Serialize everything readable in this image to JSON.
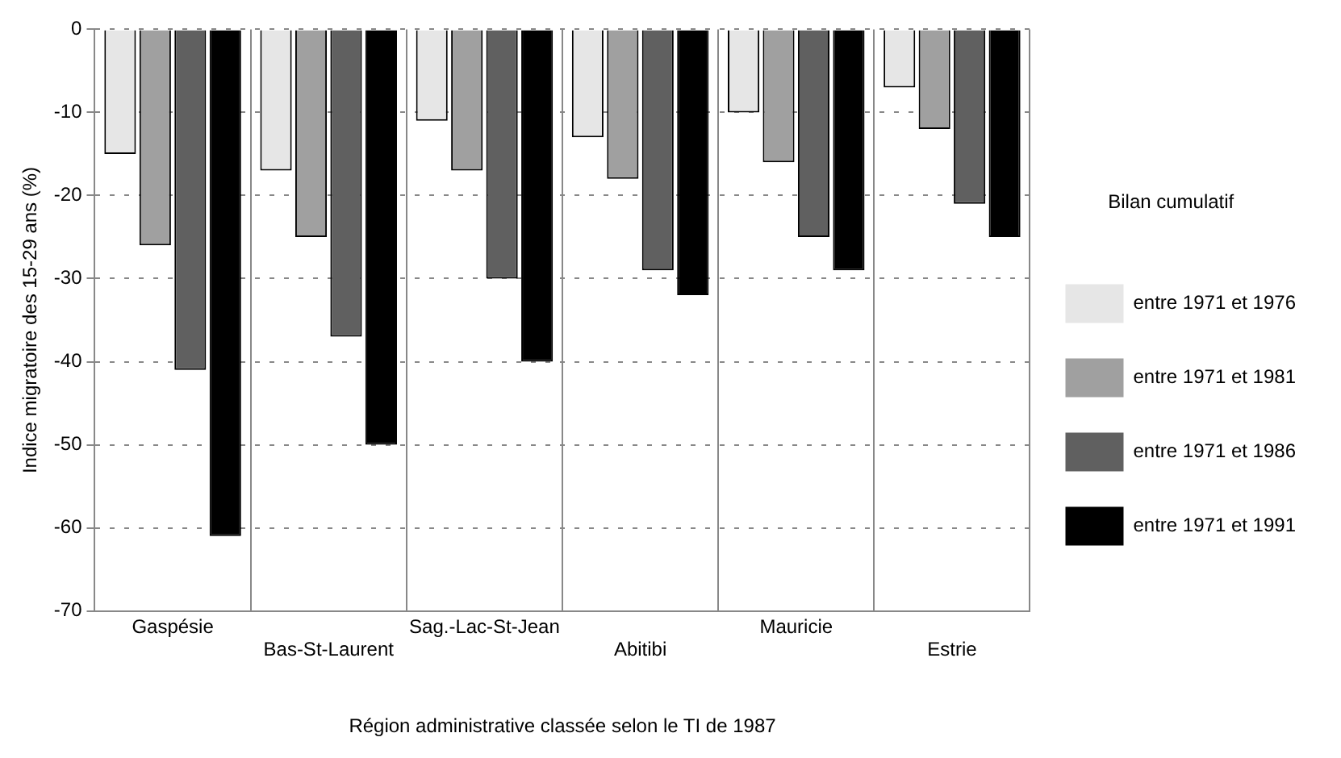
{
  "chart_data": {
    "type": "bar",
    "xlabel": "Région administrative classée selon le TI de 1987",
    "ylabel": "Indice migratoire des 15-29 ans (%)",
    "legend_title": "Bilan cumulatif",
    "categories": [
      "Gaspésie",
      "Bas-St-Laurent",
      "Sag.-Lac-St-Jean",
      "Abitibi",
      "Mauricie",
      "Estrie"
    ],
    "series": [
      {
        "name": "entre 1971 et 1976",
        "color": "#e6e6e6",
        "values": [
          -15,
          -17,
          -11,
          -13,
          -10,
          -7
        ]
      },
      {
        "name": "entre 1971 et 1981",
        "color": "#a0a0a0",
        "values": [
          -26,
          -25,
          -17,
          -18,
          -16,
          -12
        ]
      },
      {
        "name": "entre 1971 et 1986",
        "color": "#606060",
        "values": [
          -41,
          -37,
          -30,
          -29,
          -25,
          -21
        ]
      },
      {
        "name": "entre 1971 et 1991",
        "color": "#000000",
        "values": [
          -61,
          -50,
          -40,
          -32,
          -29,
          -25
        ]
      }
    ],
    "ylim": [
      -70,
      0
    ],
    "yticks": [
      0,
      -10,
      -20,
      -30,
      -40,
      -50,
      -60,
      -70
    ],
    "grid": true,
    "legend": "right"
  }
}
